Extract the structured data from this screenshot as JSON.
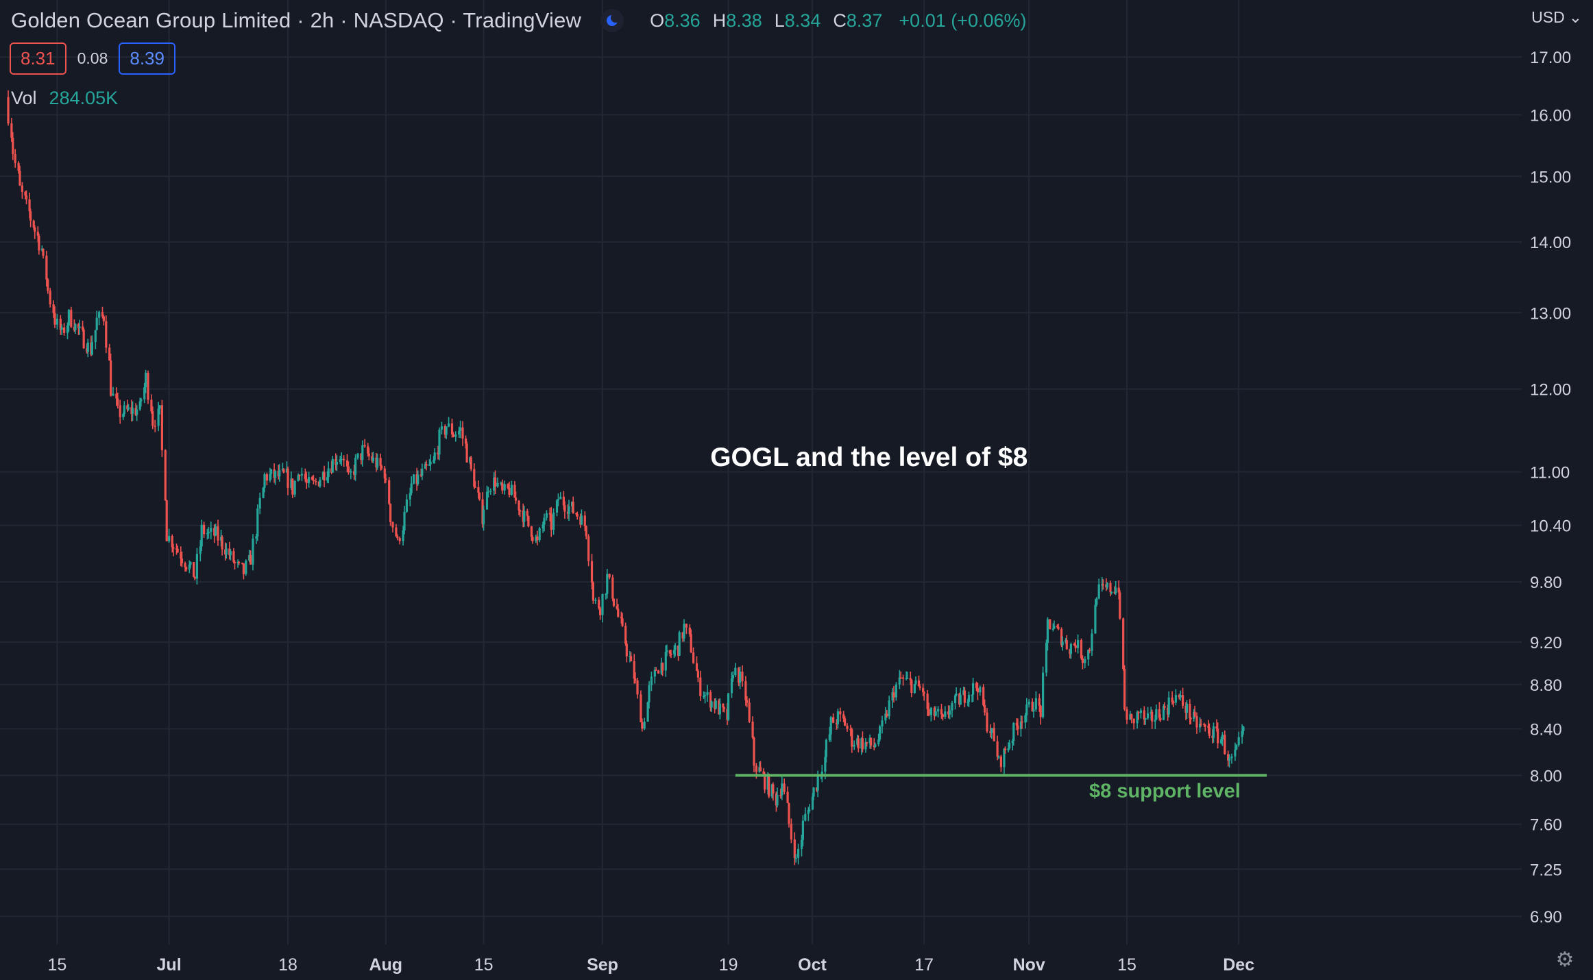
{
  "header": {
    "title": "Golden Ocean Group Limited · 2h · NASDAQ · TradingView",
    "ohlc": {
      "o_label": "O",
      "o_value": "8.36",
      "h_label": "H",
      "h_value": "8.38",
      "l_label": "L",
      "l_value": "8.34",
      "c_label": "C",
      "c_value": "8.37",
      "change": "+0.01 (+0.06%)"
    },
    "bid": "8.31",
    "spread": "0.08",
    "ask": "8.39",
    "vol_label": "Vol",
    "vol_value": "284.05K",
    "currency": "USD"
  },
  "colors": {
    "background": "#161a25",
    "grid": "#232734",
    "up": "#26a69a",
    "down": "#ef5350",
    "support": "#5fb466",
    "text": "#d1d4dc"
  },
  "icons": {
    "theme": "moon-icon",
    "currency_menu": "chevron-down-icon",
    "settings": "gear-icon"
  },
  "chart_data": {
    "type": "candlestick",
    "title": "GOGL and the level of $8",
    "y_scale": "log",
    "ylim": [
      6.7,
      17.6
    ],
    "y_ticks": [
      "17.00",
      "16.00",
      "15.00",
      "14.00",
      "13.00",
      "12.00",
      "11.00",
      "10.40",
      "9.80",
      "9.20",
      "8.80",
      "8.40",
      "8.00",
      "7.60",
      "7.25",
      "6.90"
    ],
    "x_ticks": [
      "15",
      "Jul",
      "18",
      "Aug",
      "15",
      "Sep",
      "19",
      "Oct",
      "17",
      "Nov",
      "15",
      "Dec"
    ],
    "x_tick_months": [
      "Jul",
      "Aug",
      "Sep",
      "Oct",
      "Nov",
      "Dec"
    ],
    "grid": true,
    "price_path": [
      [
        "Jun 08",
        16.3
      ],
      [
        "Jun 09",
        15.4
      ],
      [
        "Jun 10",
        14.8
      ],
      [
        "Jun 13",
        13.9
      ],
      [
        "Jun 14",
        13.3
      ],
      [
        "Jun 15",
        12.9
      ],
      [
        "Jun 16",
        12.7
      ],
      [
        "Jun 17",
        12.95
      ],
      [
        "Jun 20",
        12.5
      ],
      [
        "Jun 21",
        12.9
      ],
      [
        "Jun 22",
        12.95
      ],
      [
        "Jun 23",
        12.0
      ],
      [
        "Jun 24",
        11.7
      ],
      [
        "Jun 27",
        11.75
      ],
      [
        "Jun 28",
        12.15
      ],
      [
        "Jun 29",
        11.6
      ],
      [
        "Jun 30",
        11.7
      ],
      [
        "Jul 01",
        10.3
      ],
      [
        "Jul 05",
        9.85
      ],
      [
        "Jul 06",
        10.35
      ],
      [
        "Jul 07",
        10.3
      ],
      [
        "Jul 08",
        10.3
      ],
      [
        "Jul 11",
        9.95
      ],
      [
        "Jul 12",
        9.9
      ],
      [
        "Jul 13",
        10.05
      ],
      [
        "Jul 14",
        10.5
      ],
      [
        "Jul 15",
        10.95
      ],
      [
        "Jul 18",
        10.95
      ],
      [
        "Jul 19",
        10.8
      ],
      [
        "Jul 20",
        11.05
      ],
      [
        "Jul 21",
        10.85
      ],
      [
        "Jul 22",
        10.85
      ],
      [
        "Jul 25",
        11.15
      ],
      [
        "Jul 26",
        11.2
      ],
      [
        "Jul 27",
        10.9
      ],
      [
        "Jul 28",
        11.1
      ],
      [
        "Jul 29",
        11.25
      ],
      [
        "Aug 01",
        11.0
      ],
      [
        "Aug 02",
        10.5
      ],
      [
        "Aug 03",
        10.2
      ],
      [
        "Aug 04",
        10.5
      ],
      [
        "Aug 05",
        10.85
      ],
      [
        "Aug 08",
        11.1
      ],
      [
        "Aug 09",
        11.4
      ],
      [
        "Aug 10",
        11.55
      ],
      [
        "Aug 11",
        11.45
      ],
      [
        "Aug 12",
        11.5
      ],
      [
        "Aug 15",
        10.5
      ],
      [
        "Aug 16",
        10.85
      ],
      [
        "Aug 17",
        10.9
      ],
      [
        "Aug 18",
        10.75
      ],
      [
        "Aug 19",
        10.8
      ],
      [
        "Aug 22",
        10.35
      ],
      [
        "Aug 23",
        10.2
      ],
      [
        "Aug 24",
        10.5
      ],
      [
        "Aug 25",
        10.4
      ],
      [
        "Aug 26",
        10.7
      ],
      [
        "Aug 29",
        10.5
      ],
      [
        "Aug 30",
        10.35
      ],
      [
        "Aug 31",
        9.6
      ],
      [
        "Sep 01",
        9.55
      ],
      [
        "Sep 02",
        9.85
      ],
      [
        "Sep 06",
        8.8
      ],
      [
        "Sep 07",
        8.4
      ],
      [
        "Sep 08",
        8.75
      ],
      [
        "Sep 09",
        8.95
      ],
      [
        "Sep 12",
        9.15
      ],
      [
        "Sep 13",
        9.35
      ],
      [
        "Sep 14",
        9.15
      ],
      [
        "Sep 15",
        8.8
      ],
      [
        "Sep 16",
        8.7
      ],
      [
        "Sep 19",
        8.5
      ],
      [
        "Sep 20",
        8.95
      ],
      [
        "Sep 21",
        8.85
      ],
      [
        "Sep 22",
        8.6
      ],
      [
        "Sep 23",
        8.1
      ],
      [
        "Sep 26",
        7.8
      ],
      [
        "Sep 27",
        7.95
      ],
      [
        "Sep 28",
        7.6
      ],
      [
        "Sep 29",
        7.3
      ],
      [
        "Sep 30",
        7.6
      ],
      [
        "Oct 03",
        8.15
      ],
      [
        "Oct 04",
        8.45
      ],
      [
        "Oct 05",
        8.5
      ],
      [
        "Oct 06",
        8.45
      ],
      [
        "Oct 07",
        8.3
      ],
      [
        "Oct 10",
        8.25
      ],
      [
        "Oct 11",
        8.35
      ],
      [
        "Oct 12",
        8.55
      ],
      [
        "Oct 13",
        8.75
      ],
      [
        "Oct 14",
        8.85
      ],
      [
        "Oct 17",
        8.75
      ],
      [
        "Oct 18",
        8.5
      ],
      [
        "Oct 19",
        8.55
      ],
      [
        "Oct 20",
        8.45
      ],
      [
        "Oct 21",
        8.6
      ],
      [
        "Oct 24",
        8.75
      ],
      [
        "Oct 25",
        8.8
      ],
      [
        "Oct 26",
        8.5
      ],
      [
        "Oct 27",
        8.35
      ],
      [
        "Oct 28",
        8.1
      ],
      [
        "Oct 31",
        8.5
      ],
      [
        "Nov 01",
        8.55
      ],
      [
        "Nov 02",
        8.65
      ],
      [
        "Nov 03",
        8.55
      ],
      [
        "Nov 04",
        9.4
      ],
      [
        "Nov 07",
        9.15
      ],
      [
        "Nov 08",
        9.2
      ],
      [
        "Nov 09",
        9.05
      ],
      [
        "Nov 10",
        9.15
      ],
      [
        "Nov 11",
        9.7
      ],
      [
        "Nov 14",
        9.75
      ],
      [
        "Nov 15",
        8.55
      ],
      [
        "Nov 16",
        8.45
      ],
      [
        "Nov 17",
        8.55
      ],
      [
        "Nov 18",
        8.45
      ],
      [
        "Nov 21",
        8.6
      ],
      [
        "Nov 22",
        8.7
      ],
      [
        "Nov 23",
        8.65
      ],
      [
        "Nov 25",
        8.45
      ],
      [
        "Nov 28",
        8.35
      ],
      [
        "Nov 29",
        8.3
      ],
      [
        "Nov 30",
        8.1
      ],
      [
        "Dec 01",
        8.2
      ],
      [
        "Dec 02",
        8.37
      ]
    ],
    "annotations": [
      {
        "text": "GOGL and the level of $8",
        "date": "Sep 17"
      },
      {
        "text": "$8 support level",
        "date": "Nov 15",
        "y": 8.0,
        "type": "horizontal_line",
        "from": "Sep 20",
        "to": "Dec 05"
      }
    ]
  }
}
